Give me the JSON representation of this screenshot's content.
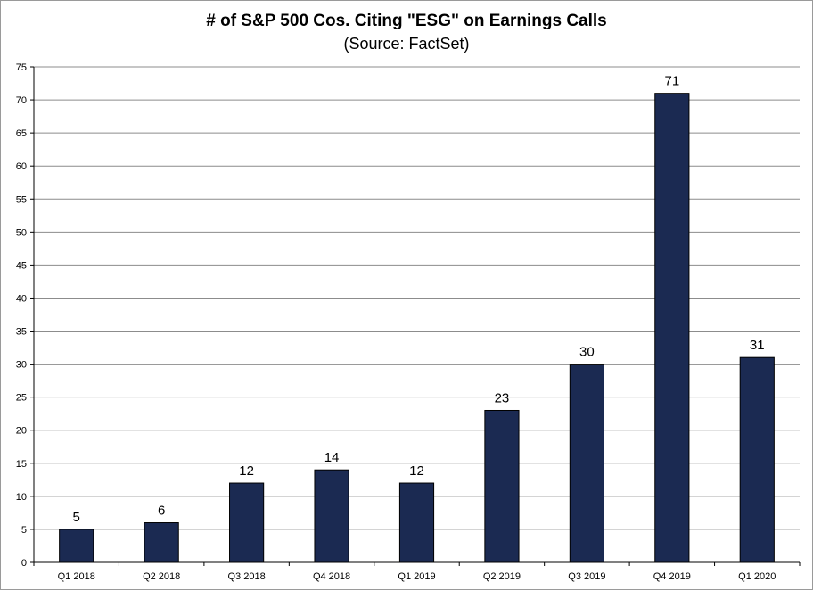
{
  "chart_data": {
    "type": "bar",
    "title": "# of S&P 500 Cos. Citing \"ESG\" on Earnings Calls",
    "subtitle": "(Source: FactSet)",
    "xlabel": "",
    "ylabel": "",
    "categories": [
      "Q1 2018",
      "Q2 2018",
      "Q3 2018",
      "Q4 2018",
      "Q1 2019",
      "Q2 2019",
      "Q3 2019",
      "Q4 2019",
      "Q1 2020"
    ],
    "values": [
      5,
      6,
      12,
      14,
      12,
      23,
      30,
      71,
      31
    ],
    "ylim": [
      0,
      75
    ],
    "ytick_step": 5,
    "grid": true,
    "legend": "none",
    "data_labels": true,
    "bar_color": "#1b2a52"
  }
}
